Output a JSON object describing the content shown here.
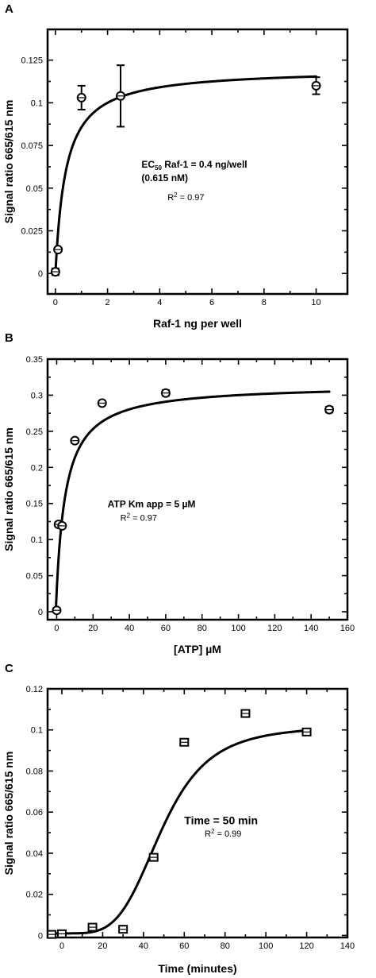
{
  "chart_data": [
    {
      "panel": "A",
      "type": "scatter",
      "marker": "circle",
      "xlabel": "Raf-1 ng per well",
      "ylabel": "Signal ratio 665/615 nm",
      "xlim": [
        -0.3,
        11.2
      ],
      "ylim": [
        -0.012,
        0.143
      ],
      "xticks": [
        0,
        2,
        4,
        6,
        8,
        10
      ],
      "xtick_labels": [
        "0",
        "2",
        "4",
        "6",
        "8",
        "10"
      ],
      "yticks": [
        0,
        0.025,
        0.05,
        0.075,
        0.1,
        0.125
      ],
      "ytick_labels": [
        "0",
        "0.025",
        "0.05",
        "0.075",
        "0.1",
        "0.125"
      ],
      "points": [
        {
          "x": 0,
          "y": 0.001,
          "err": 0.002
        },
        {
          "x": 0.1,
          "y": 0.014,
          "err": 0.001
        },
        {
          "x": 1,
          "y": 0.103,
          "err": 0.007
        },
        {
          "x": 2.5,
          "y": 0.104,
          "err": 0.018
        },
        {
          "x": 10,
          "y": 0.11,
          "err": 0.005
        }
      ],
      "fit": {
        "model": "hyperbolic",
        "ymax": 0.12,
        "k": 0.4,
        "x0": 0,
        "xmax": 10
      },
      "annotations": [
        {
          "x": 3.3,
          "y": 0.062,
          "style": "bold",
          "text": "EC",
          "sub": "50",
          "text2": " Raf-1 = 0.4 ng/well"
        },
        {
          "x": 3.3,
          "y": 0.054,
          "style": "bold",
          "text": "(0.615 nM)"
        },
        {
          "x": 4.3,
          "y": 0.043,
          "style": "regular",
          "text": "R",
          "sup": "2",
          "text2": " = 0.97"
        }
      ]
    },
    {
      "panel": "B",
      "type": "scatter",
      "marker": "circle",
      "xlabel": "[ATP] µM",
      "ylabel": "Signal ratio 665/615 nm",
      "xlim": [
        -5,
        160
      ],
      "ylim": [
        -0.011,
        0.35
      ],
      "xticks": [
        0,
        20,
        40,
        60,
        80,
        100,
        120,
        140,
        160
      ],
      "xtick_labels": [
        "0",
        "20",
        "40",
        "60",
        "80",
        "100",
        "120",
        "140",
        "160"
      ],
      "yticks": [
        0,
        0.05,
        0.1,
        0.15,
        0.2,
        0.25,
        0.3,
        0.35
      ],
      "ytick_labels": [
        "0",
        "0.05",
        "0.1",
        "0.15",
        "0.2",
        "0.25",
        "0.3",
        "0.35"
      ],
      "points": [
        {
          "x": 0,
          "y": 0.002,
          "err": 0.003
        },
        {
          "x": 1,
          "y": 0.121,
          "err": 0.003
        },
        {
          "x": 3,
          "y": 0.119,
          "err": 0.003
        },
        {
          "x": 10,
          "y": 0.237,
          "err": 0.003
        },
        {
          "x": 25,
          "y": 0.289,
          "err": 0.003
        },
        {
          "x": 60,
          "y": 0.303,
          "err": 0.004
        },
        {
          "x": 150,
          "y": 0.28,
          "err": 0.004
        }
      ],
      "fit": {
        "model": "hyperbolic",
        "ymax": 0.315,
        "k": 5,
        "x0": -0.5,
        "xmax": 150
      },
      "annotations": [
        {
          "x": 28,
          "y": 0.145,
          "style": "bold",
          "text": "ATP Km app = 5 µM"
        },
        {
          "x": 35,
          "y": 0.126,
          "style": "regular",
          "text": "R",
          "sup": "2",
          "text2": " = 0.97"
        }
      ]
    },
    {
      "panel": "C",
      "type": "scatter",
      "marker": "square",
      "xlabel": "Time (minutes)",
      "ylabel": "Signal ratio 665/615 nm",
      "xlim": [
        -7,
        140
      ],
      "ylim": [
        -0.001,
        0.12
      ],
      "xticks": [
        0,
        20,
        40,
        60,
        80,
        100,
        120,
        140
      ],
      "xtick_labels": [
        "0",
        "20",
        "40",
        "60",
        "80",
        "100",
        "120",
        "140"
      ],
      "yticks": [
        0,
        0.02,
        0.04,
        0.06,
        0.08,
        0.1,
        0.12
      ],
      "ytick_labels": [
        "0",
        "0.02",
        "0.04",
        "0.06",
        "0.08",
        "0.1",
        "0.12"
      ],
      "points": [
        {
          "x": -5,
          "y": 0.0005
        },
        {
          "x": 0,
          "y": 0.0008
        },
        {
          "x": 15,
          "y": 0.004
        },
        {
          "x": 30,
          "y": 0.003
        },
        {
          "x": 45,
          "y": 0.038
        },
        {
          "x": 60,
          "y": 0.094
        },
        {
          "x": 90,
          "y": 0.108
        },
        {
          "x": 120,
          "y": 0.099
        }
      ],
      "fit": {
        "model": "sigmoid",
        "bottom": 0.001,
        "top": 0.102,
        "mid": 49,
        "slope": 4.2,
        "x0": -5,
        "xmax": 120
      },
      "annotations": [
        {
          "x": 60,
          "y": 0.054,
          "style": "big",
          "text": "Time = 50 min"
        },
        {
          "x": 70,
          "y": 0.048,
          "style": "regular",
          "text": "R",
          "sup": "2",
          "text2": " = 0.99"
        }
      ]
    }
  ]
}
